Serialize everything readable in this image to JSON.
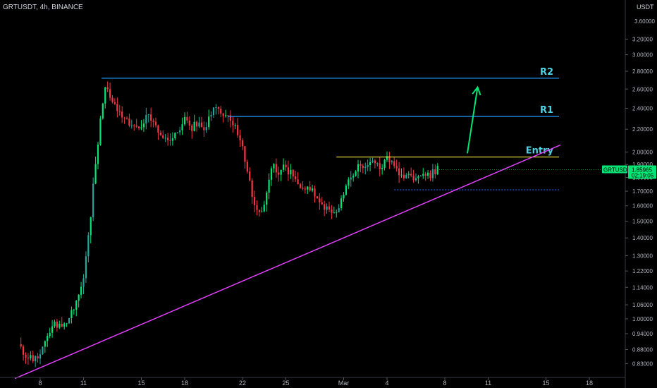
{
  "chart_data": {
    "type": "candlestick",
    "title": "GRTUSDT, 4h, BINANCE",
    "unit": "USDT",
    "y_ticks": [
      0.83,
      0.88,
      0.94,
      1.0,
      1.06,
      1.14,
      1.22,
      1.3,
      1.4,
      1.5,
      1.6,
      1.7,
      1.8,
      1.9,
      2.0,
      2.2,
      2.4,
      2.6,
      2.8,
      3.0,
      3.2
    ],
    "y_tick_labels": [
      "0.83000",
      "0.88000",
      "0.94000",
      "1.00000",
      "1.06000",
      "1.14000",
      "1.22000",
      "1.30000",
      "1.40000",
      "1.50000",
      "1.60000",
      "1.70000",
      "1.80000",
      "1.90000",
      "2.00000",
      "2.20000",
      "2.40000",
      "2.60000",
      "2.80000",
      "3.00000",
      "3.20000"
    ],
    "y_top_partial_label": "3.60000",
    "x_ticks": [
      "8",
      "11",
      "15",
      "18",
      "22",
      "25",
      "Mar",
      "4",
      "8",
      "11",
      "15",
      "18"
    ],
    "close_path": [
      [
        "Feb 6 12:00",
        0.9
      ],
      [
        "Feb 7 00:00",
        0.86
      ],
      [
        "Feb 7 12:00",
        0.84
      ],
      [
        "Feb 8 00:00",
        0.86
      ],
      [
        "Feb 8 12:00",
        0.92
      ],
      [
        "Feb 9 00:00",
        0.98
      ],
      [
        "Feb 9 12:00",
        0.96
      ],
      [
        "Feb 10 00:00",
        1.0
      ],
      [
        "Feb 10 12:00",
        1.06
      ],
      [
        "Feb 11 00:00",
        1.18
      ],
      [
        "Feb 11 12:00",
        1.55
      ],
      [
        "Feb 12 00:00",
        2.1
      ],
      [
        "Feb 12 12:00",
        2.65
      ],
      [
        "Feb 13 00:00",
        2.45
      ],
      [
        "Feb 13 12:00",
        2.35
      ],
      [
        "Feb 14 00:00",
        2.3
      ],
      [
        "Feb 14 12:00",
        2.2
      ],
      [
        "Feb 15 00:00",
        2.25
      ],
      [
        "Feb 15 12:00",
        2.35
      ],
      [
        "Feb 16 00:00",
        2.2
      ],
      [
        "Feb 16 12:00",
        2.15
      ],
      [
        "Feb 17 00:00",
        2.1
      ],
      [
        "Feb 17 12:00",
        2.18
      ],
      [
        "Feb 18 00:00",
        2.28
      ],
      [
        "Feb 18 12:00",
        2.22
      ],
      [
        "Feb 19 00:00",
        2.25
      ],
      [
        "Feb 19 12:00",
        2.22
      ],
      [
        "Feb 20 00:00",
        2.45
      ],
      [
        "Feb 20 12:00",
        2.35
      ],
      [
        "Feb 21 00:00",
        2.32
      ],
      [
        "Feb 21 12:00",
        2.25
      ],
      [
        "Feb 22 00:00",
        2.05
      ],
      [
        "Feb 22 12:00",
        1.75
      ],
      [
        "Feb 23 00:00",
        1.55
      ],
      [
        "Feb 23 12:00",
        1.6
      ],
      [
        "Feb 24 00:00",
        1.9
      ],
      [
        "Feb 24 12:00",
        1.85
      ],
      [
        "Feb 25 00:00",
        1.88
      ],
      [
        "Feb 25 12:00",
        1.8
      ],
      [
        "Feb 26 00:00",
        1.7
      ],
      [
        "Feb 26 12:00",
        1.72
      ],
      [
        "Feb 27 00:00",
        1.68
      ],
      [
        "Feb 27 12:00",
        1.62
      ],
      [
        "Feb 28 00:00",
        1.55
      ],
      [
        "Feb 28 12:00",
        1.55
      ],
      [
        "Mar 1 00:00",
        1.7
      ],
      [
        "Mar 1 12:00",
        1.8
      ],
      [
        "Mar 2 00:00",
        1.9
      ],
      [
        "Mar 2 12:00",
        1.85
      ],
      [
        "Mar 3 00:00",
        1.92
      ],
      [
        "Mar 3 12:00",
        1.88
      ],
      [
        "Mar 4 00:00",
        1.95
      ],
      [
        "Mar 4 12:00",
        1.9
      ],
      [
        "Mar 5 00:00",
        1.8
      ],
      [
        "Mar 5 12:00",
        1.82
      ],
      [
        "Mar 6 00:00",
        1.78
      ],
      [
        "Mar 6 12:00",
        1.8
      ],
      [
        "Mar 7 00:00",
        1.82
      ],
      [
        "Mar 7 12:00",
        1.86
      ]
    ],
    "annotations": [
      {
        "label": "R2",
        "level": 2.72,
        "color": "#2196f3",
        "label_color": "#4dd0e1"
      },
      {
        "label": "R1",
        "level": 2.32,
        "color": "#2196f3",
        "label_color": "#4dd0e1"
      },
      {
        "label": "Entry",
        "level": 1.96,
        "color": "#ffeb3b",
        "label_color": "#4dd0e1"
      },
      {
        "label": "",
        "level": 1.71,
        "color": "#2962ff",
        "style": "dotted"
      }
    ],
    "trendline": {
      "color": "#e040fb",
      "from": [
        "Feb 6 06:00",
        0.78
      ],
      "to": [
        "Mar 16 00:00",
        2.06
      ]
    },
    "arrow": {
      "color": "#00e676",
      "from": [
        "Mar 10 00:00",
        1.99
      ],
      "to": [
        "Mar 11 00:00",
        2.62
      ]
    },
    "last_price": {
      "symbol": "GRTUSDT",
      "value": "1.85965",
      "countdown": "02:19:05",
      "color": "#00e676"
    },
    "colors": {
      "up": "#26a69a",
      "up_bright": "#00e676",
      "down": "#f23645",
      "background": "#000000"
    },
    "grid": false
  }
}
